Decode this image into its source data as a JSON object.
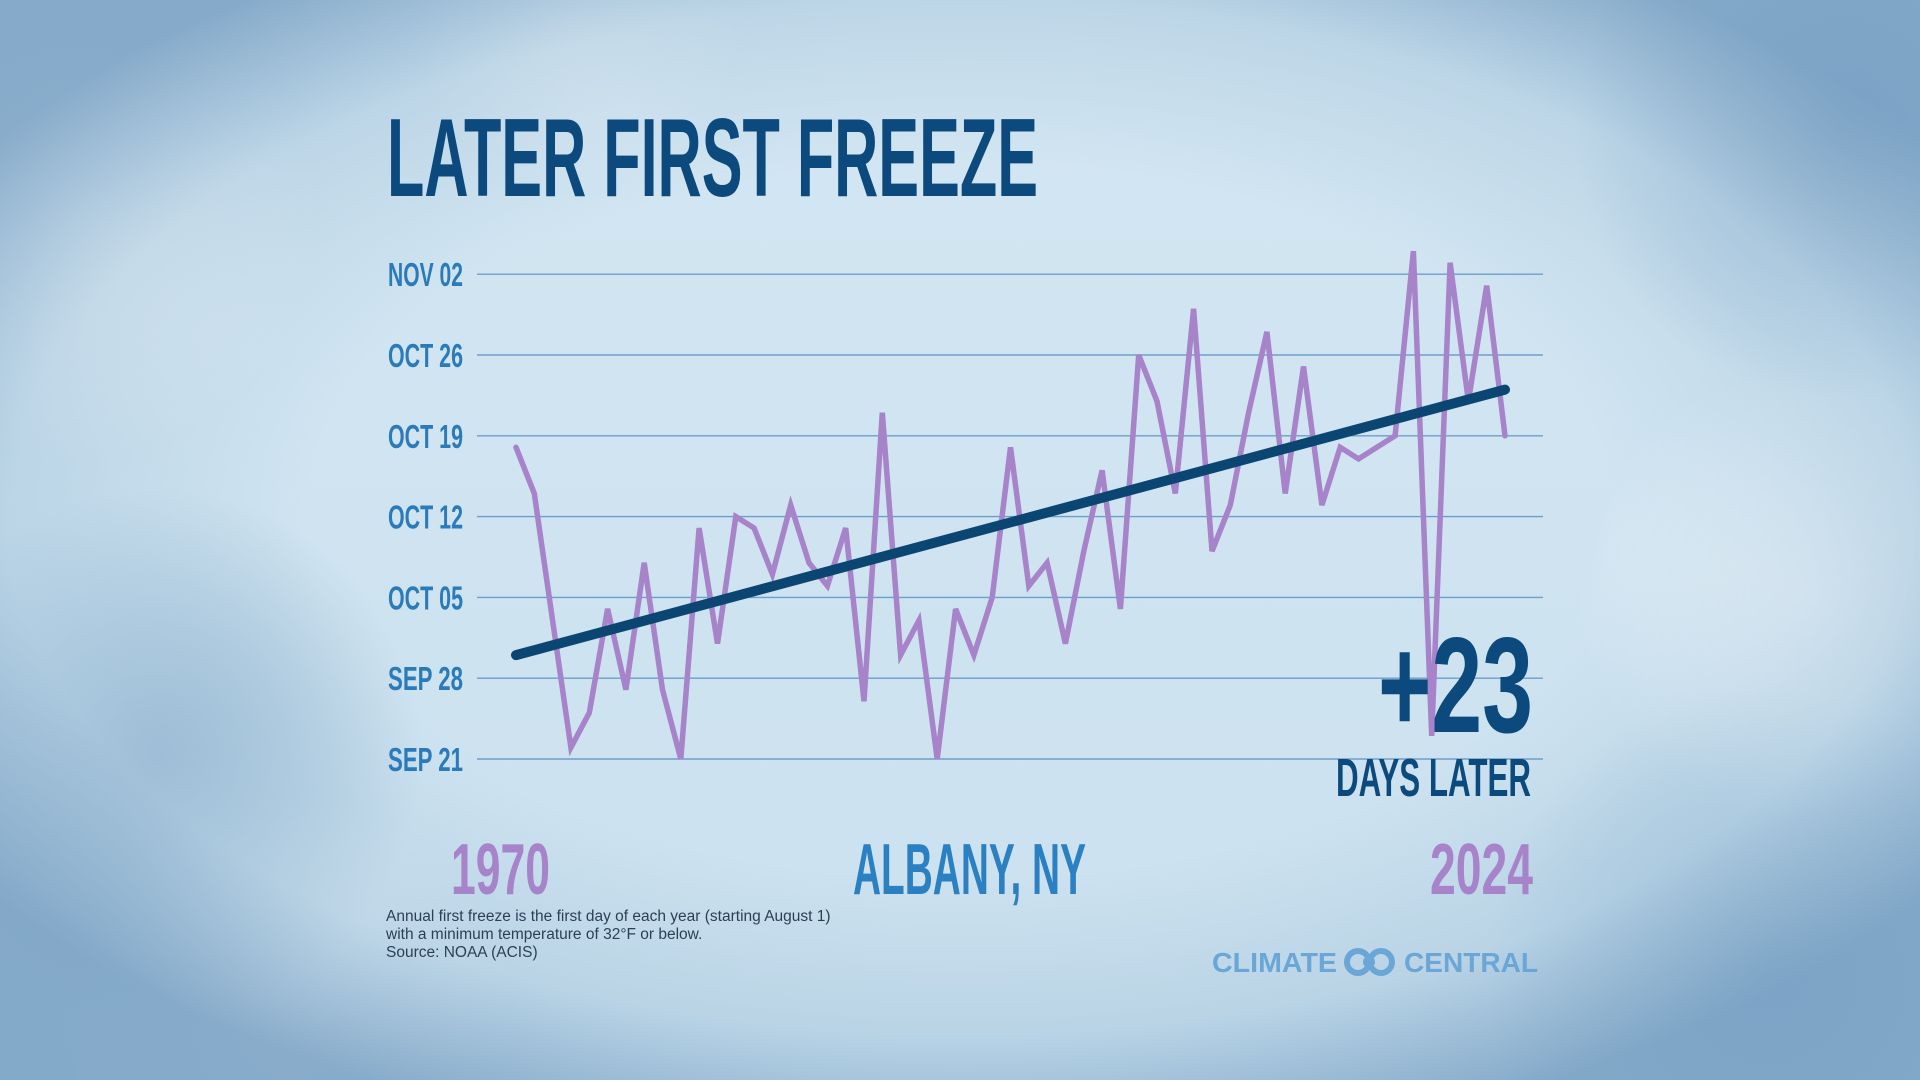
{
  "title": "LATER FIRST FREEZE",
  "location": "ALBANY, NY",
  "start_year_label": "1970",
  "end_year_label": "2024",
  "change": {
    "value": "+23",
    "label": "DAYS LATER"
  },
  "footnote": [
    "Annual first freeze is the first day of each year (starting August 1)",
    "with a minimum temperature of 32°F or below.",
    "Source: NOAA (ACIS)"
  ],
  "logo": {
    "left": "CLIMATE",
    "right": "CENTRAL"
  },
  "colors": {
    "title": "#0c4a7e",
    "axis_labels": "#2b7bbb",
    "series": "#a783c9",
    "trend": "#0b4673",
    "gridline": "#6d9ecb",
    "location": "#2b80c2",
    "logo": "#6aa6d6"
  },
  "chart_data": {
    "type": "line",
    "title": "LATER FIRST FREEZE",
    "xlabel": "",
    "ylabel": "",
    "x_range": [
      1970,
      2024
    ],
    "y_ticks": [
      {
        "value": "09-21",
        "label": "SEP 21"
      },
      {
        "value": "09-28",
        "label": "SEP 28"
      },
      {
        "value": "10-05",
        "label": "OCT 05"
      },
      {
        "value": "10-12",
        "label": "OCT 12"
      },
      {
        "value": "10-19",
        "label": "OCT 19"
      },
      {
        "value": "10-26",
        "label": "OCT 26"
      },
      {
        "value": "11-02",
        "label": "NOV 02"
      }
    ],
    "grid": true,
    "series": [
      {
        "x": [
          1970,
          1971,
          1972,
          1973,
          1974,
          1975,
          1976,
          1977,
          1978,
          1979,
          1980,
          1981,
          1982,
          1983,
          1984,
          1985,
          1986,
          1987,
          1988,
          1989,
          1990,
          1991,
          1992,
          1993,
          1994,
          1995,
          1996,
          1997,
          1998,
          1999,
          2000,
          2001,
          2002,
          2003,
          2004,
          2005,
          2006,
          2007,
          2008,
          2009,
          2010,
          2011,
          2012,
          2013,
          2014,
          2015,
          2016,
          2017,
          2018,
          2019,
          2020,
          2021,
          2022,
          2023,
          2024
        ],
        "y": [
          "10-18",
          "10-14",
          "10-03",
          "09-22",
          "09-25",
          "10-04",
          "09-27",
          "10-08",
          "09-27",
          "09-21",
          "10-11",
          "10-01",
          "10-12",
          "10-11",
          "10-07",
          "10-13",
          "10-08",
          "10-06",
          "10-11",
          "09-26",
          "10-21",
          "09-30",
          "10-03",
          "09-21",
          "10-04",
          "09-30",
          "10-05",
          "10-18",
          "10-06",
          "10-08",
          "10-01",
          "10-09",
          "10-16",
          "10-04",
          "10-26",
          "10-22",
          "10-14",
          "10-30",
          "10-09",
          "10-13",
          "10-21",
          "10-28",
          "10-14",
          "10-25",
          "10-13",
          "10-18",
          "10-17",
          "10-18",
          "10-19",
          "11-04",
          "09-23",
          "11-03",
          "10-22",
          "11-01",
          "10-19"
        ]
      },
      {
        "type": "trend",
        "x": [
          1970,
          2024
        ],
        "y": [
          "09-30",
          "10-23"
        ]
      }
    ],
    "annotation": "+23 DAYS LATER"
  }
}
